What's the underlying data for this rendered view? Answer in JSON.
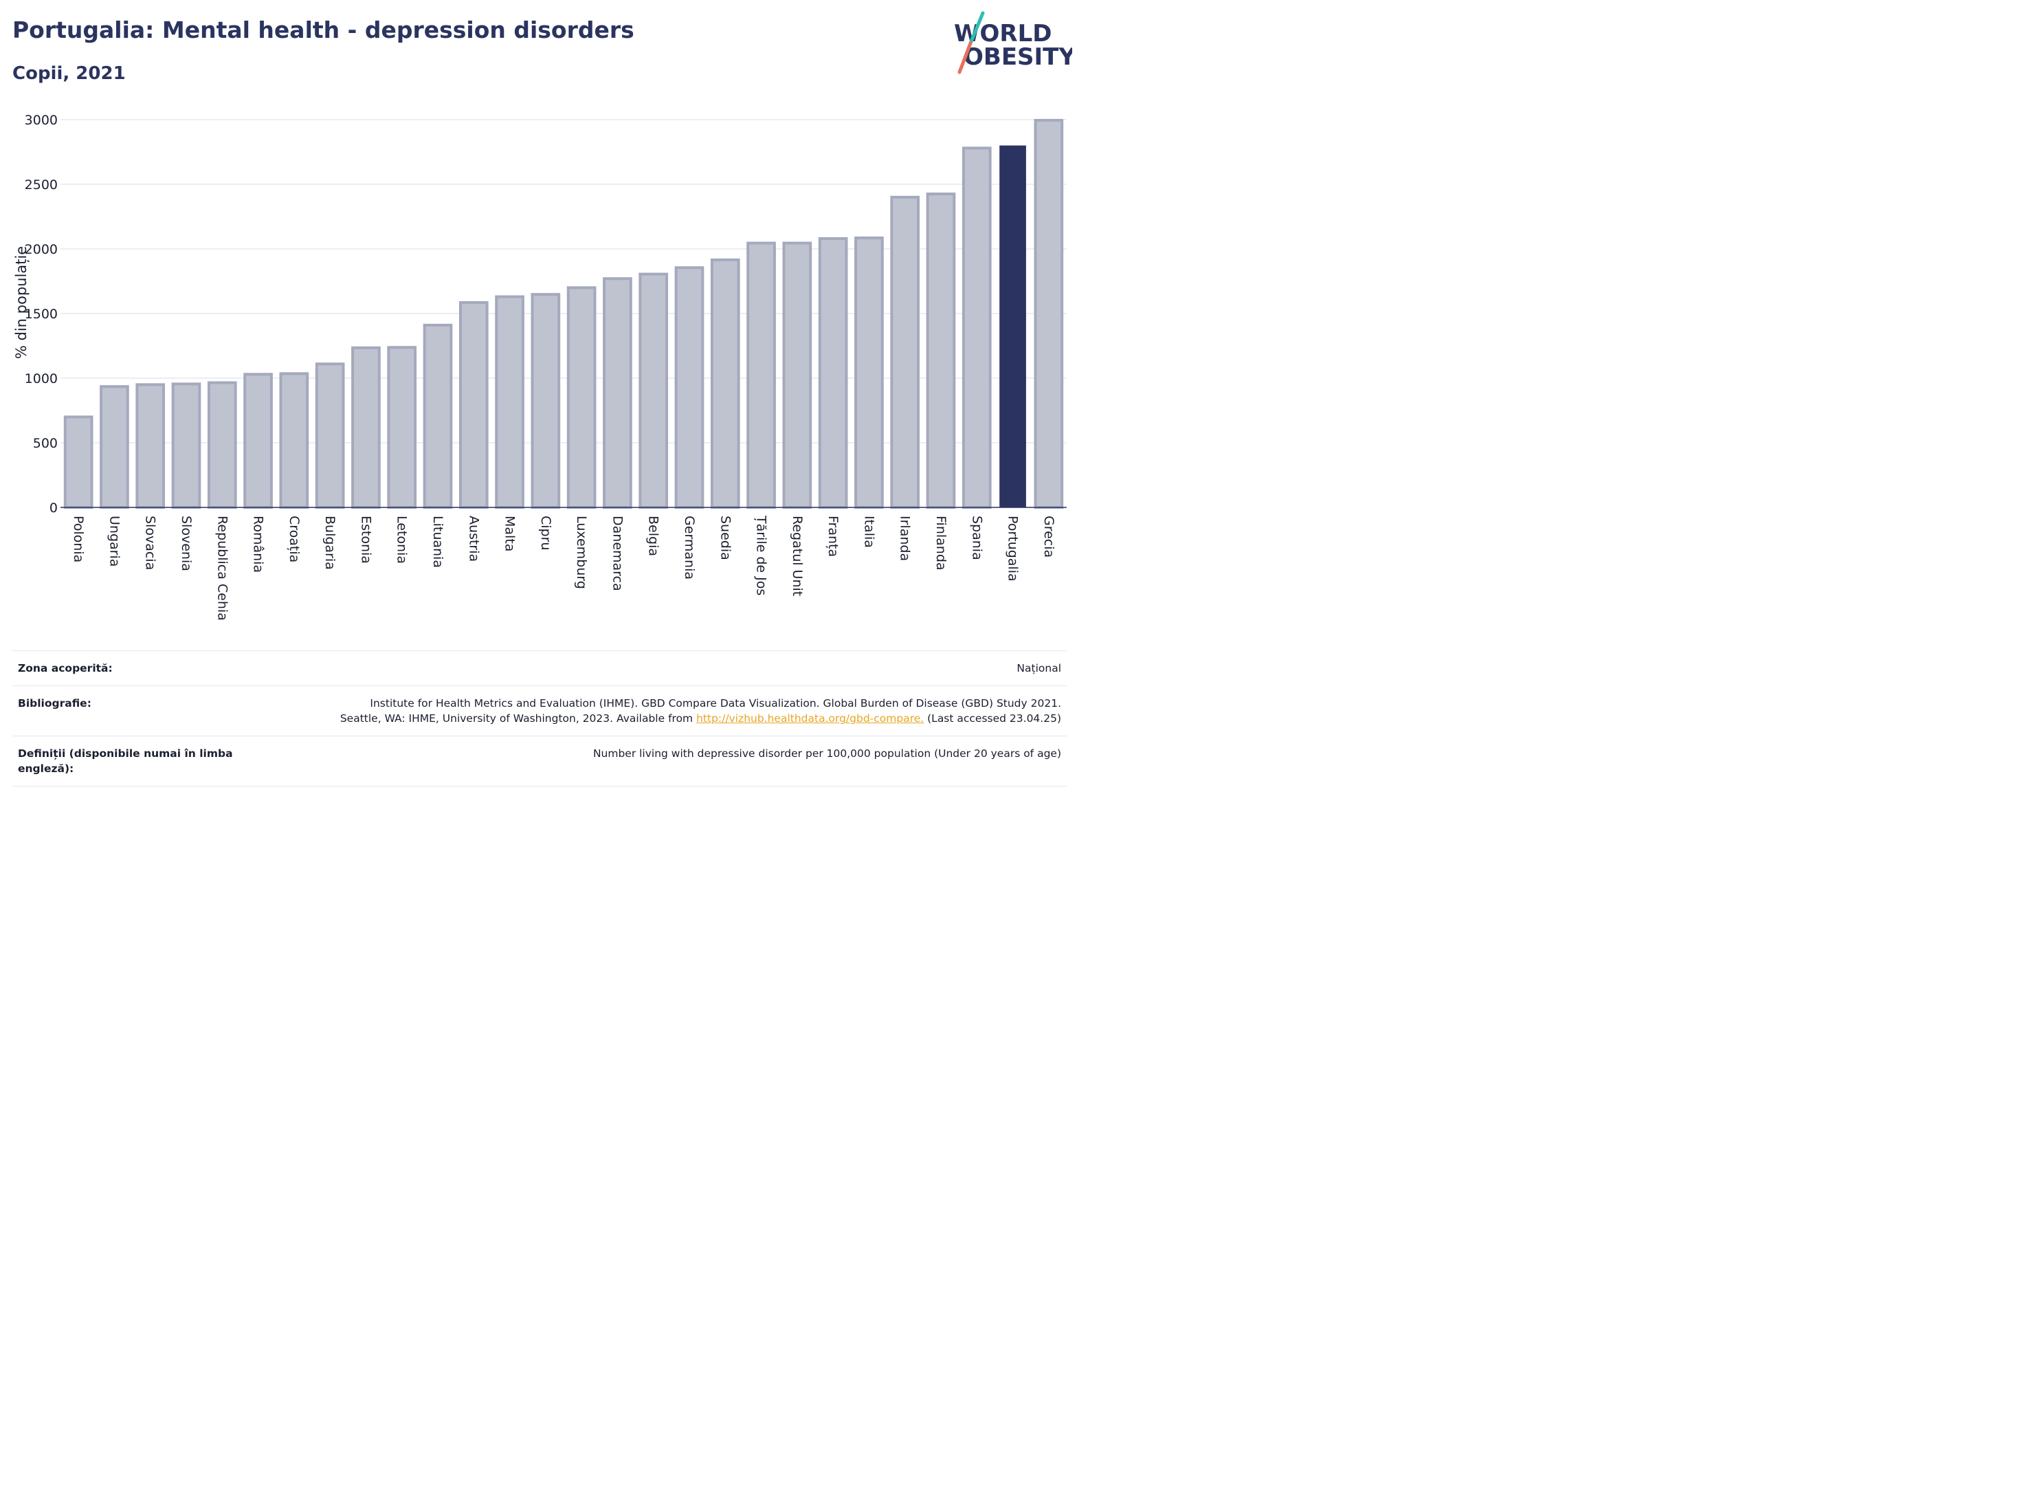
{
  "header": {
    "title": "Portugalia: Mental health - depression disorders",
    "subtitle": "Copii, 2021"
  },
  "logo": {
    "line1": "WORLD",
    "line2": "OBESITY"
  },
  "colors": {
    "highlight_bar": "#2b3460",
    "default_bar_fill": "#bfc3d0",
    "default_bar_stroke": "#a4a9bd",
    "gridline": "#e6e8ef",
    "text": "#1b1f2e",
    "title": "#2b3460",
    "link": "#e8a623",
    "logo_slash_top": "#2fbfb0",
    "logo_slash_bottom": "#e8705c"
  },
  "chart_data": {
    "type": "bar",
    "title": "",
    "xlabel": "",
    "ylabel": "% din populație",
    "ylim": [
      0,
      3000
    ],
    "yticks": [
      0,
      500,
      1000,
      1500,
      2000,
      2500,
      3000
    ],
    "grid": true,
    "highlight": "Portugalia",
    "categories": [
      "Polonia",
      "Ungaria",
      "Slovacia",
      "Slovenia",
      "Republica Cehia",
      "România",
      "Croația",
      "Bulgaria",
      "Estonia",
      "Letonia",
      "Lituania",
      "Austria",
      "Malta",
      "Cipru",
      "Luxemburg",
      "Danemarca",
      "Belgia",
      "Germania",
      "Suedia",
      "Țările de Jos",
      "Regatul Unit",
      "Franța",
      "Italia",
      "Irlanda",
      "Finlanda",
      "Spania",
      "Portugalia",
      "Grecia"
    ],
    "values": [
      700,
      935,
      950,
      955,
      965,
      1030,
      1035,
      1110,
      1235,
      1238,
      1410,
      1585,
      1630,
      1648,
      1700,
      1770,
      1805,
      1855,
      1915,
      2045,
      2045,
      2080,
      2085,
      2400,
      2425,
      2780,
      2800,
      2995
    ]
  },
  "meta": {
    "coverage_label": "Zona acoperită:",
    "coverage_value": "Național",
    "bibliography_label": "Bibliografie:",
    "bibliography_line1": "Institute for Health Metrics and Evaluation (IHME). GBD Compare Data Visualization. Global Burden of Disease (GBD) Study 2021.",
    "bibliography_line2_pre": "Seattle, WA: IHME, University of Washington, 2023. Available from ",
    "bibliography_link": "http://vizhub.healthdata.org/gbd-compare.",
    "bibliography_line2_post": " (Last accessed 23.04.25)",
    "definitions_label": "Definiții (disponibile numai în limba engleză):",
    "definitions_value": "Number living with depressive disorder per 100,000 population (Under 20 years of age)"
  }
}
